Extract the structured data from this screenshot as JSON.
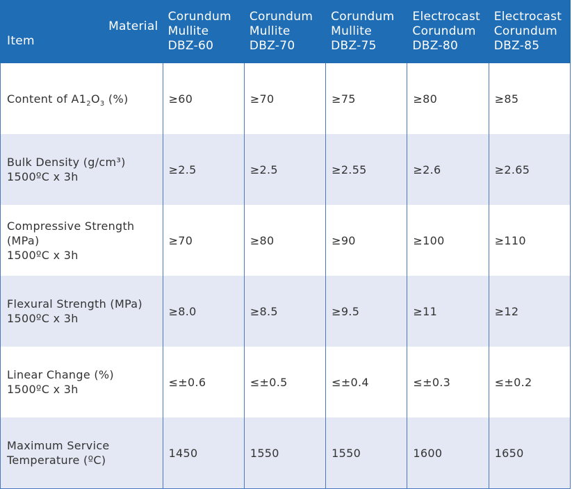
{
  "header": {
    "material_label": "Material",
    "item_label": "Item",
    "columns": [
      {
        "line1": "Corundum",
        "line2": "Mullite",
        "line3": "DBZ-60"
      },
      {
        "line1": "Corundum",
        "line2": "Mullite",
        "line3": "DBZ-70"
      },
      {
        "line1": "Corundum",
        "line2": "Mullite",
        "line3": "DBZ-75"
      },
      {
        "line1": "Electrocast",
        "line2": "Corundum",
        "line3": "DBZ-80"
      },
      {
        "line1": "Electrocast",
        "line2": "Corundum",
        "line3": "DBZ-85"
      }
    ]
  },
  "rows": [
    {
      "label_a": "Content of A1",
      "label_sub1": "2",
      "label_b": "O",
      "label_sub2": "3",
      "label_c": " (%)",
      "values": [
        "≥60",
        "≥70",
        "≥75",
        "≥80",
        "≥85"
      ]
    },
    {
      "line1": "Bulk Density (g/cm³)",
      "line2": "1500ºC x 3h",
      "values": [
        "≥2.5",
        "≥2.5",
        "≥2.55",
        "≥2.6",
        "≥2.65"
      ]
    },
    {
      "line1": "Compressive Strength",
      "line2": "(MPa)",
      "line3": "1500ºC x 3h",
      "values": [
        "≥70",
        "≥80",
        "≥90",
        "≥100",
        "≥110"
      ]
    },
    {
      "line1": "Flexural Strength (MPa)",
      "line2": "1500ºC x 3h",
      "values": [
        "≥8.0",
        "≥8.5",
        "≥9.5",
        "≥11",
        "≥12"
      ]
    },
    {
      "line1": "Linear Change (%)",
      "line2": "1500ºC x 3h",
      "values": [
        "≤±0.6",
        "≤±0.5",
        "≤±0.4",
        "≤±0.3",
        "≤±0.2"
      ]
    },
    {
      "line1": "Maximum Service",
      "line2": "Temperature (ºC)",
      "values": [
        "1450",
        "1550",
        "1550",
        "1600",
        "1650"
      ]
    }
  ],
  "colors": {
    "header_bg": "#1f6db5",
    "header_text": "#ffffff",
    "alt_row_bg": "#e4e8f4",
    "grid_line": "#4a78c0",
    "body_text": "#333333"
  }
}
